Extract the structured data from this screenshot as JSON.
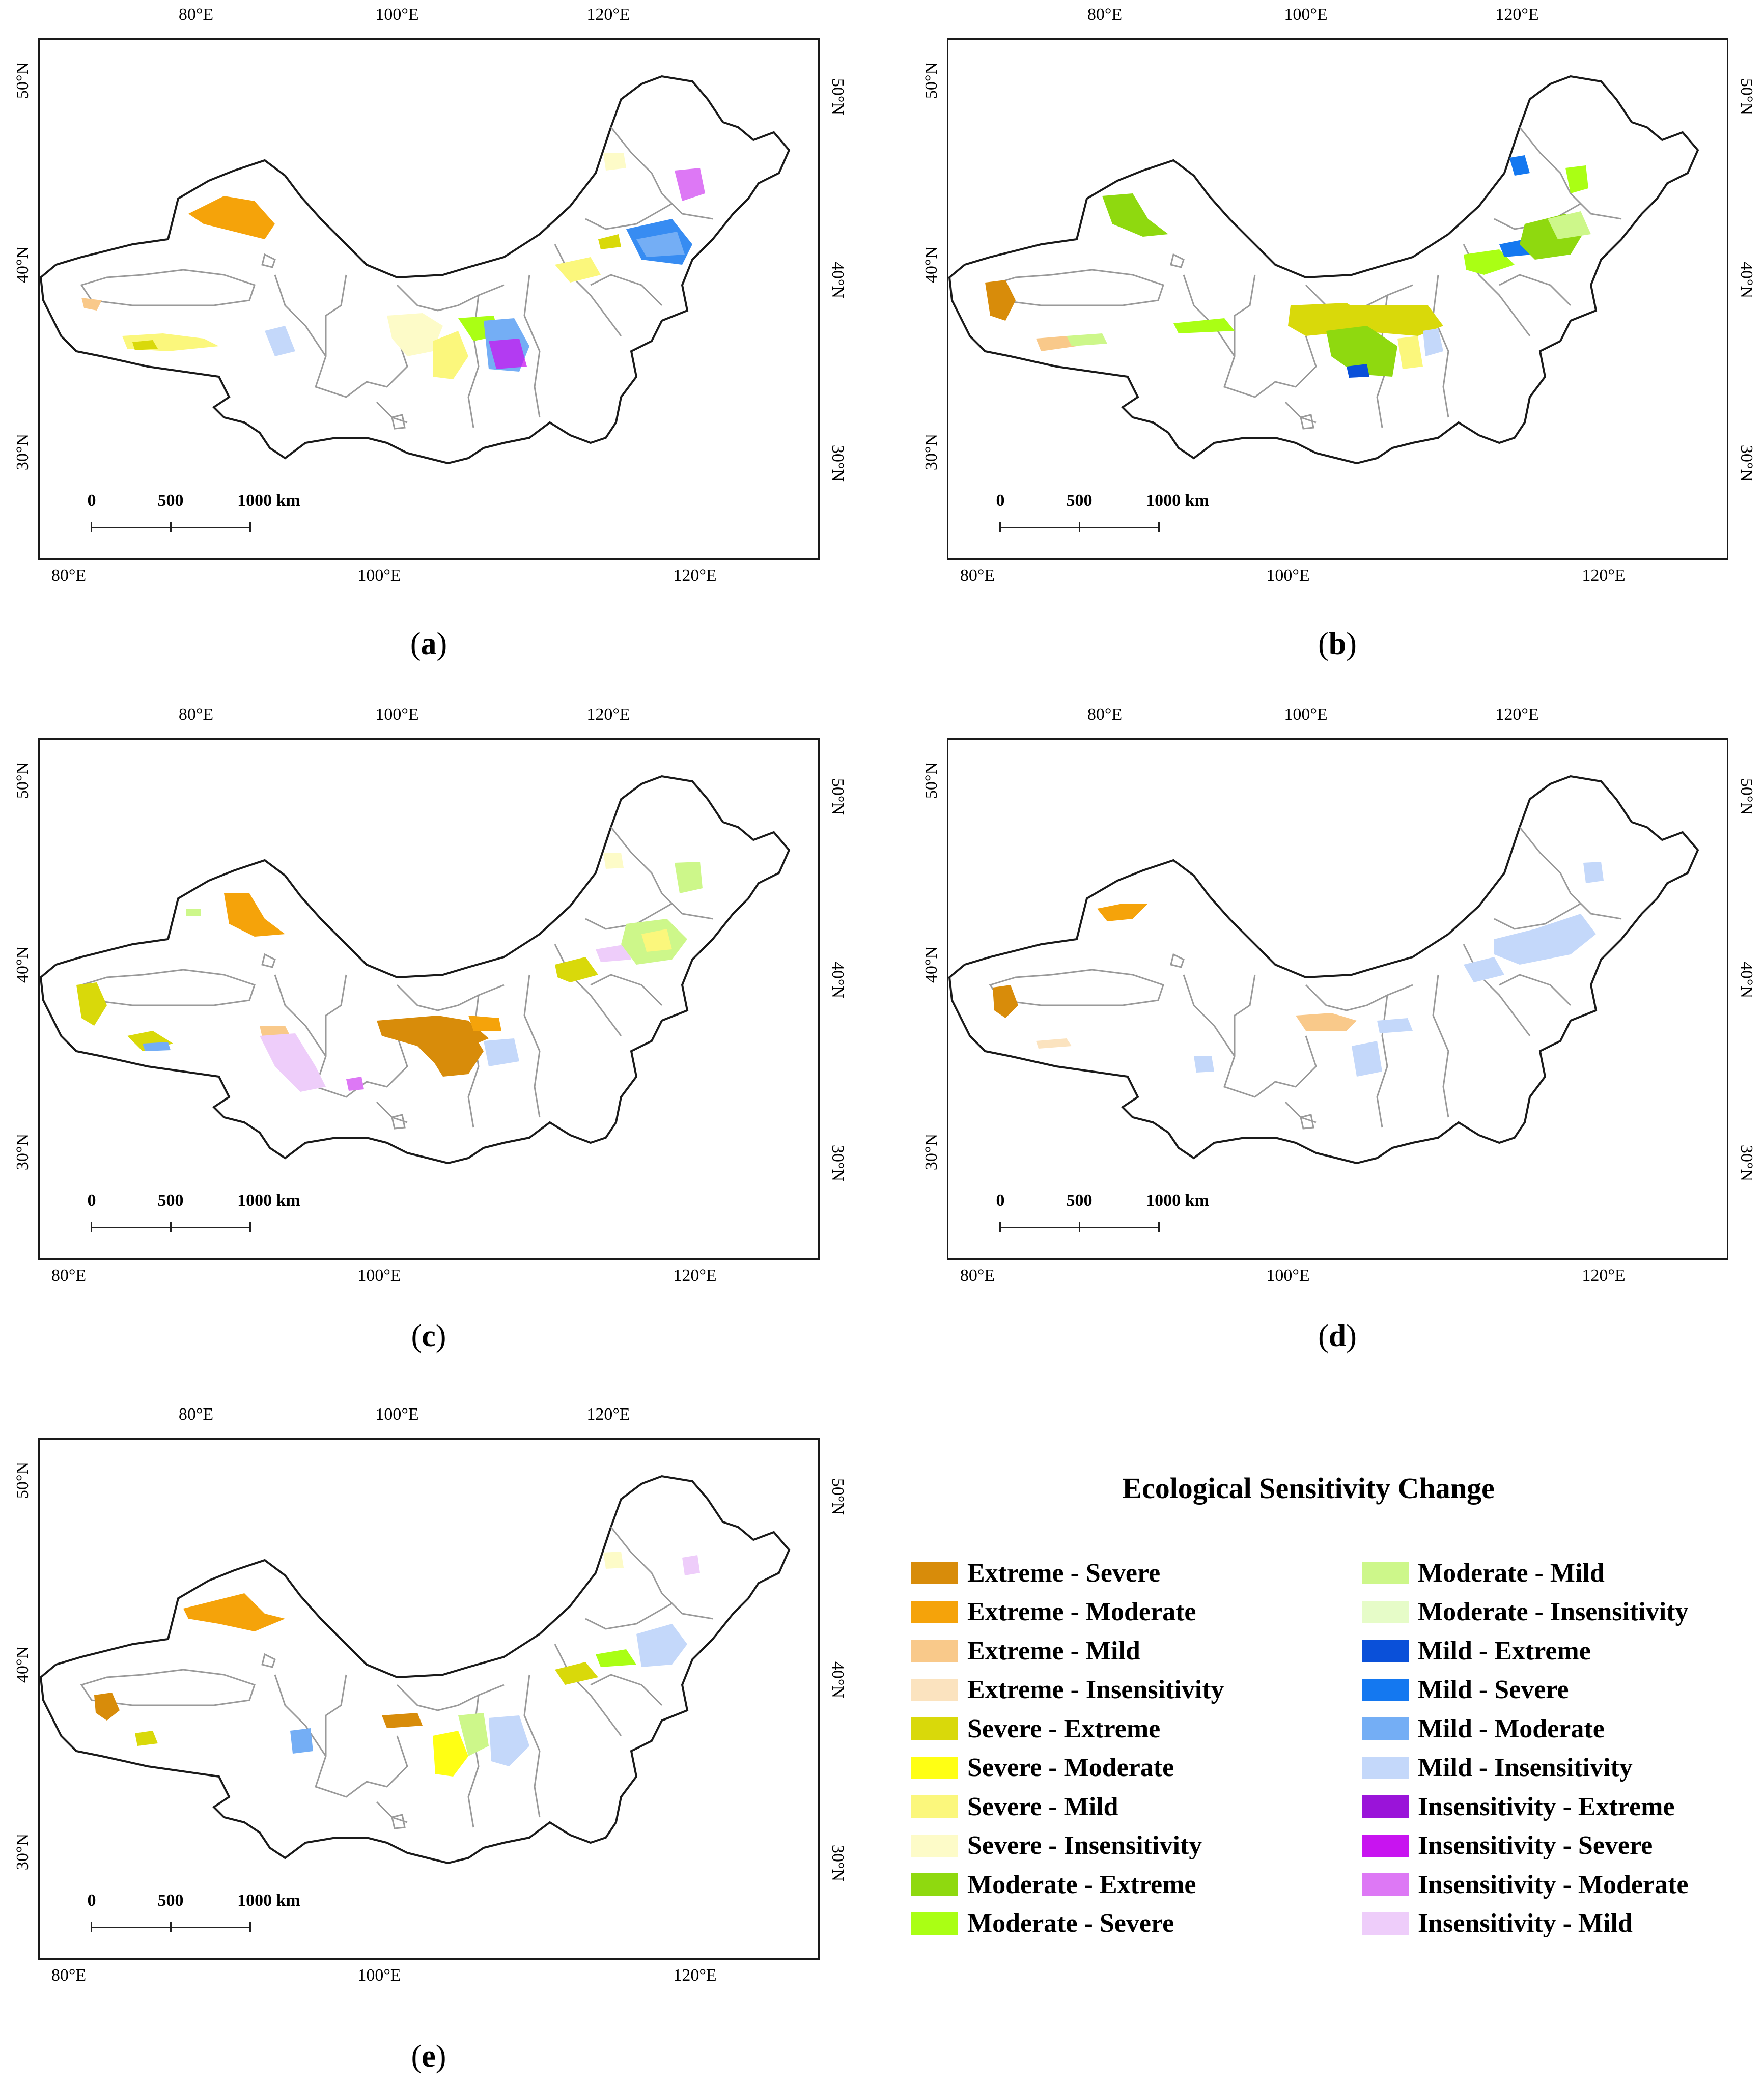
{
  "axes": {
    "top_ticks": [
      "80°E",
      "100°E",
      "120°E"
    ],
    "bottom_ticks": [
      "80°E",
      "100°E",
      "120°E"
    ],
    "left_ticks": [
      "50°N",
      "40°N",
      "30°N"
    ],
    "right_ticks": [
      "50°N",
      "40°N",
      "30°N"
    ]
  },
  "scale_bar": {
    "labels": [
      "0",
      "500",
      "1000 km"
    ]
  },
  "panels": [
    {
      "id": "a",
      "caption": "a"
    },
    {
      "id": "b",
      "caption": "b"
    },
    {
      "id": "c",
      "caption": "c"
    },
    {
      "id": "d",
      "caption": "d"
    },
    {
      "id": "e",
      "caption": "e"
    }
  ],
  "legend": {
    "title": "Ecological Sensitivity Change",
    "items": [
      {
        "label": "Extreme - Severe",
        "color": "#d88c0a"
      },
      {
        "label": "Extreme - Moderate",
        "color": "#f5a30a"
      },
      {
        "label": "Extreme - Mild",
        "color": "#f9c98a"
      },
      {
        "label": "Extreme - Insensitivity",
        "color": "#fbe3bf"
      },
      {
        "label": "Severe - Extreme",
        "color": "#d9d90a"
      },
      {
        "label": "Severe - Moderate",
        "color": "#ffff14"
      },
      {
        "label": "Severe - Mild",
        "color": "#fbf77c"
      },
      {
        "label": "Severe - Insensitivity",
        "color": "#fdfbc8"
      },
      {
        "label": "Moderate - Extreme",
        "color": "#8fd90f"
      },
      {
        "label": "Moderate - Severe",
        "color": "#aaff14"
      },
      {
        "label": "Moderate - Mild",
        "color": "#cdf78a"
      },
      {
        "label": "Moderate - Insensitivity",
        "color": "#e6fcc8"
      },
      {
        "label": "Mild - Extreme",
        "color": "#0a50d9"
      },
      {
        "label": "Mild - Severe",
        "color": "#1478f0"
      },
      {
        "label": "Mild - Moderate",
        "color": "#74aef5"
      },
      {
        "label": "Mild - Insensitivity",
        "color": "#c4d8fa"
      },
      {
        "label": "Insensitivity - Extreme",
        "color": "#9a14d9"
      },
      {
        "label": "Insensitivity - Severe",
        "color": "#c814f0"
      },
      {
        "label": "Insensitivity - Moderate",
        "color": "#dd78f5"
      },
      {
        "label": "Insensitivity - Mild",
        "color": "#eecdfa"
      }
    ]
  }
}
